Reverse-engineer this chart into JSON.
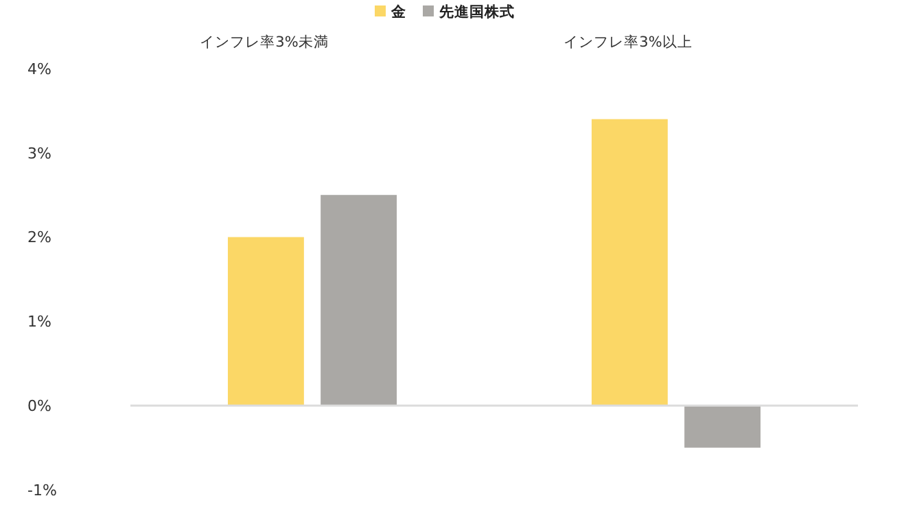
{
  "chart_data": {
    "type": "bar",
    "categories": [
      "インフレ率3%未満",
      "インフレ率3%以上"
    ],
    "series": [
      {
        "name": "金",
        "color": "#fbd766",
        "values": [
          2.0,
          3.4
        ]
      },
      {
        "name": "先進国株式",
        "color": "#aaa8a5",
        "values": [
          2.5,
          -0.5
        ]
      }
    ],
    "ylim": [
      -1,
      4
    ],
    "yticks": [
      {
        "value": -1,
        "label": "-1%"
      },
      {
        "value": 0,
        "label": "0%"
      },
      {
        "value": 1,
        "label": "1%"
      },
      {
        "value": 2,
        "label": "2%"
      },
      {
        "value": 3,
        "label": "3%"
      },
      {
        "value": 4,
        "label": "4%"
      }
    ],
    "ref_lines": [
      {
        "axis": "y",
        "value": 0,
        "color": "#dcdcdc"
      }
    ],
    "legend": "top"
  }
}
